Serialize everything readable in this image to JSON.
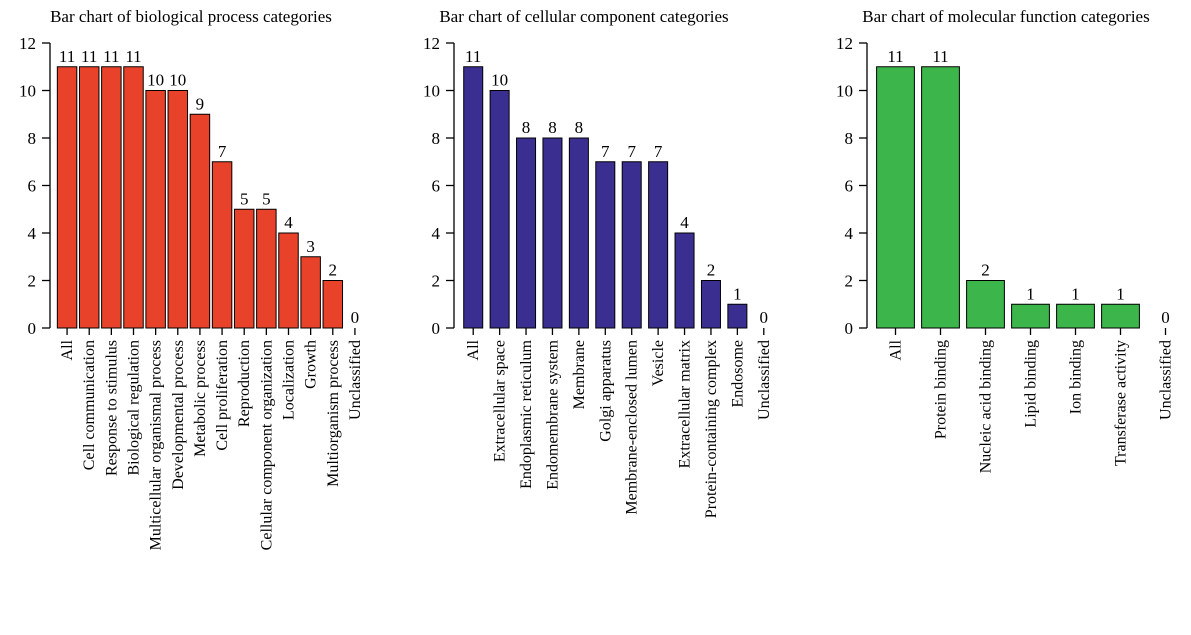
{
  "chart_data": [
    {
      "type": "bar",
      "title": "Bar chart of biological process categories",
      "categories": [
        "All",
        "Cell communication",
        "Response to stimulus",
        "Biological regulation",
        "Multicellular organismal process",
        "Developmental process",
        "Metabolic process",
        "Cell proliferation",
        "Reproduction",
        "Cellular component organization",
        "Localization",
        "Growth",
        "Multiorganism process",
        "Unclassified"
      ],
      "values": [
        11,
        11,
        11,
        11,
        10,
        10,
        9,
        7,
        5,
        5,
        4,
        3,
        2,
        0
      ],
      "color": "#e8432a",
      "ylim": [
        0,
        12
      ],
      "yticks": [
        0,
        2,
        4,
        6,
        8,
        10,
        12
      ]
    },
    {
      "type": "bar",
      "title": "Bar chart of cellular component categories",
      "categories": [
        "All",
        "Extracellular space",
        "Endoplasmic reticulum",
        "Endomembrane system",
        "Membrane",
        "Golgi apparatus",
        "Membrane-enclosed lumen",
        "Vesicle",
        "Extracellular matrix",
        "Protein-containing complex",
        "Endosome",
        "Unclassified"
      ],
      "values": [
        11,
        10,
        8,
        8,
        8,
        7,
        7,
        7,
        4,
        2,
        1,
        0
      ],
      "color": "#3a2f91",
      "ylim": [
        0,
        12
      ],
      "yticks": [
        0,
        2,
        4,
        6,
        8,
        10,
        12
      ]
    },
    {
      "type": "bar",
      "title": "Bar chart of molecular function categories",
      "categories": [
        "All",
        "Protein binding",
        "Nucleic acid binding",
        "Lipid binding",
        "Ion binding",
        "Transferase activity",
        "Unclassified"
      ],
      "values": [
        11,
        11,
        2,
        1,
        1,
        1,
        0
      ],
      "color": "#3cb54a",
      "ylim": [
        0,
        12
      ],
      "yticks": [
        0,
        2,
        4,
        6,
        8,
        10,
        12
      ]
    }
  ]
}
